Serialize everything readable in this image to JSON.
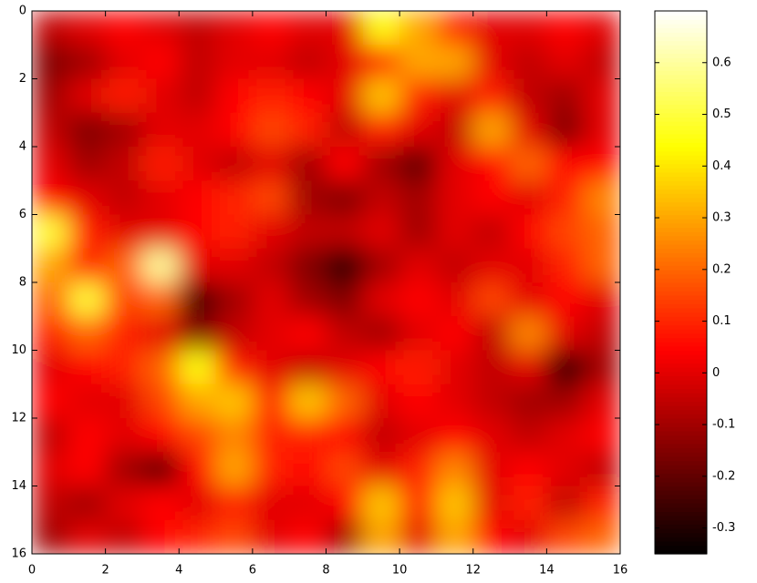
{
  "chart_data": {
    "type": "heatmap",
    "colormap": "hot",
    "xlim": [
      0,
      16
    ],
    "ylim": [
      16,
      0
    ],
    "xticks": [
      0,
      2,
      4,
      6,
      8,
      10,
      12,
      14,
      16
    ],
    "yticks": [
      0,
      2,
      4,
      6,
      8,
      10,
      12,
      14,
      16
    ],
    "clim": [
      -0.35,
      0.7
    ],
    "cticks": [
      -0.3,
      -0.2,
      -0.1,
      0,
      0.1,
      0.2,
      0.3,
      0.4,
      0.5,
      0.6
    ],
    "values": [
      [
        -0.05,
        0,
        0.05,
        0,
        -0.05,
        0,
        0.05,
        0,
        0,
        0.45,
        0.3,
        0.1,
        0,
        0,
        0.05,
        0
      ],
      [
        -0.15,
        -0.1,
        0,
        0.05,
        -0.05,
        0,
        0,
        -0.05,
        0,
        0.1,
        0.3,
        0.3,
        0,
        -0.05,
        0,
        -0.05
      ],
      [
        -0.1,
        0,
        0.1,
        0,
        -0.05,
        0.05,
        0.1,
        0.05,
        0,
        0.35,
        0.1,
        0,
        0.1,
        -0.05,
        -0.1,
        0
      ],
      [
        -0.05,
        -0.15,
        -0.1,
        0,
        0,
        0.05,
        0.15,
        0.1,
        -0.05,
        0.1,
        0,
        -0.05,
        0.3,
        0,
        -0.15,
        0
      ],
      [
        0,
        -0.1,
        -0.05,
        0.1,
        0,
        -0.05,
        0,
        -0.1,
        0.05,
        -0.1,
        -0.2,
        0,
        0.05,
        0.2,
        0.05,
        0.05
      ],
      [
        0.05,
        0,
        -0.05,
        0,
        0.05,
        0.1,
        0.15,
        -0.1,
        -0.15,
        -0.05,
        -0.1,
        0,
        0.05,
        0,
        0.1,
        0.25
      ],
      [
        0.5,
        0.1,
        0,
        0,
        0.05,
        0.1,
        0,
        -0.05,
        -0.05,
        0,
        -0.1,
        0,
        -0.05,
        0.05,
        0.15,
        0.2
      ],
      [
        0.3,
        0.1,
        0.2,
        0.6,
        0,
        0,
        -0.05,
        -0.15,
        -0.3,
        -0.1,
        0,
        -0.05,
        0,
        0,
        0.1,
        0.2
      ],
      [
        0.2,
        0.5,
        0.15,
        0.2,
        -0.25,
        -0.1,
        0,
        -0.1,
        -0.15,
        0,
        0.05,
        0,
        0.15,
        0,
        0.05,
        0
      ],
      [
        0.1,
        0.2,
        0.1,
        0,
        -0.15,
        -0.05,
        0,
        0.05,
        -0.05,
        -0.1,
        0,
        0.05,
        -0.05,
        0.25,
        0,
        -0.05
      ],
      [
        0,
        0.05,
        0.1,
        0.2,
        0.45,
        0.1,
        0,
        -0.05,
        0,
        0.05,
        0.1,
        0,
        -0.05,
        0,
        -0.3,
        -0.1
      ],
      [
        0.05,
        0,
        0,
        0.15,
        0.3,
        0.35,
        0.1,
        0.35,
        0.2,
        0,
        0.05,
        0,
        -0.05,
        -0.1,
        -0.1,
        0
      ],
      [
        -0.05,
        0.05,
        0,
        0.05,
        0.15,
        0.25,
        0.1,
        0.1,
        0.05,
        -0.05,
        0,
        0.05,
        0,
        -0.05,
        0,
        0.05
      ],
      [
        0,
        0.05,
        -0.1,
        -0.2,
        0.05,
        0.3,
        0.1,
        0.05,
        0.15,
        0,
        0.1,
        0.25,
        0,
        0.05,
        0,
        -0.05
      ],
      [
        -0.05,
        -0.1,
        0,
        0.05,
        0,
        0.1,
        0,
        0,
        0.05,
        0.35,
        0.1,
        0.35,
        0,
        0.1,
        -0.05,
        0.1
      ],
      [
        -0.1,
        0,
        -0.05,
        0.05,
        0.1,
        0.15,
        0,
        0.05,
        -0.1,
        0.3,
        0,
        0.3,
        0.05,
        0,
        0.15,
        0.2
      ]
    ]
  }
}
